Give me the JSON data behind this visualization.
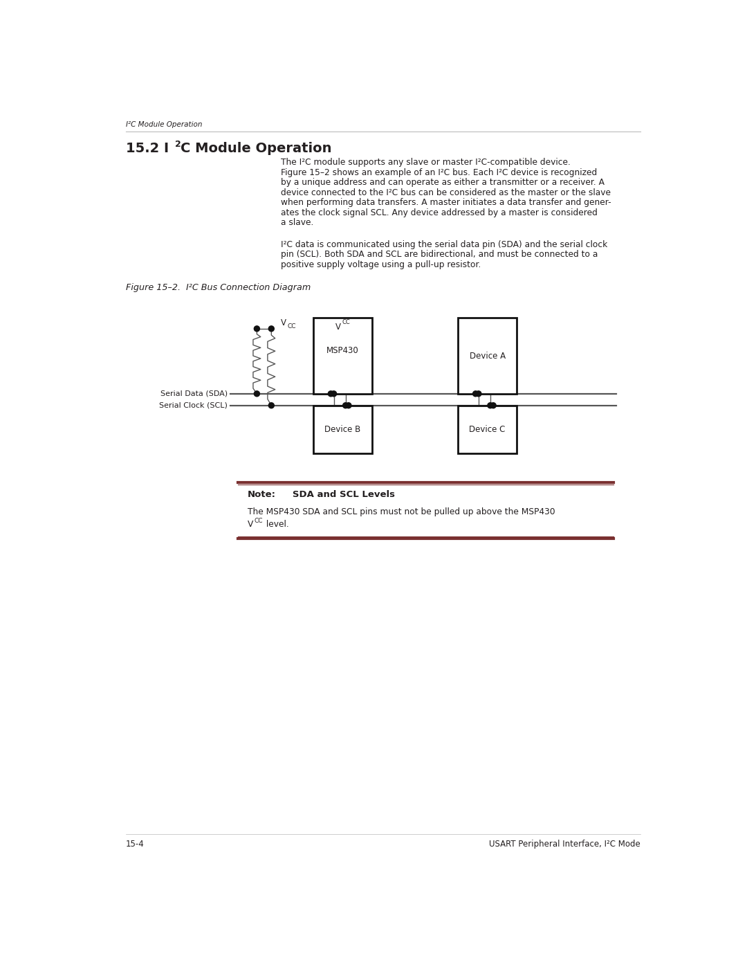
{
  "page_width": 10.8,
  "page_height": 13.97,
  "bg_color": "#ffffff",
  "text_color": "#231f20",
  "line_color": "#555555",
  "box_color": "#111111",
  "dot_color": "#111111",
  "note_border_color": "#7a3030",
  "footer_left": "15-4",
  "footer_right": "USART Peripheral Interface, I²C Mode",
  "header_text": "I²C Module Operation",
  "body1_lines": [
    "The I²C module supports any slave or master I²C-compatible device.",
    "Figure 15–2 shows an example of an I²C bus. Each I²C device is recognized",
    "by a unique address and can operate as either a transmitter or a receiver. A",
    "device connected to the I²C bus can be considered as the master or the slave",
    "when performing data transfers. A master initiates a data transfer and gener-",
    "ates the clock signal SCL. Any device addressed by a master is considered",
    "a slave."
  ],
  "body2_lines": [
    "I²C data is communicated using the serial data pin (SDA) and the serial clock",
    "pin (SCL). Both SDA and SCL are bidirectional, and must be connected to a",
    "positive supply voltage using a pull-up resistor."
  ],
  "figure_caption": "Figure 15–2.  I²C Bus Connection Diagram",
  "note_title_part1": "Note:",
  "note_title_part2": "   SDA and SCL Levels",
  "note_line1": "The MSP430 SDA and SCL pins must not be pulled up above the MSP430",
  "note_vcc_text": "level."
}
